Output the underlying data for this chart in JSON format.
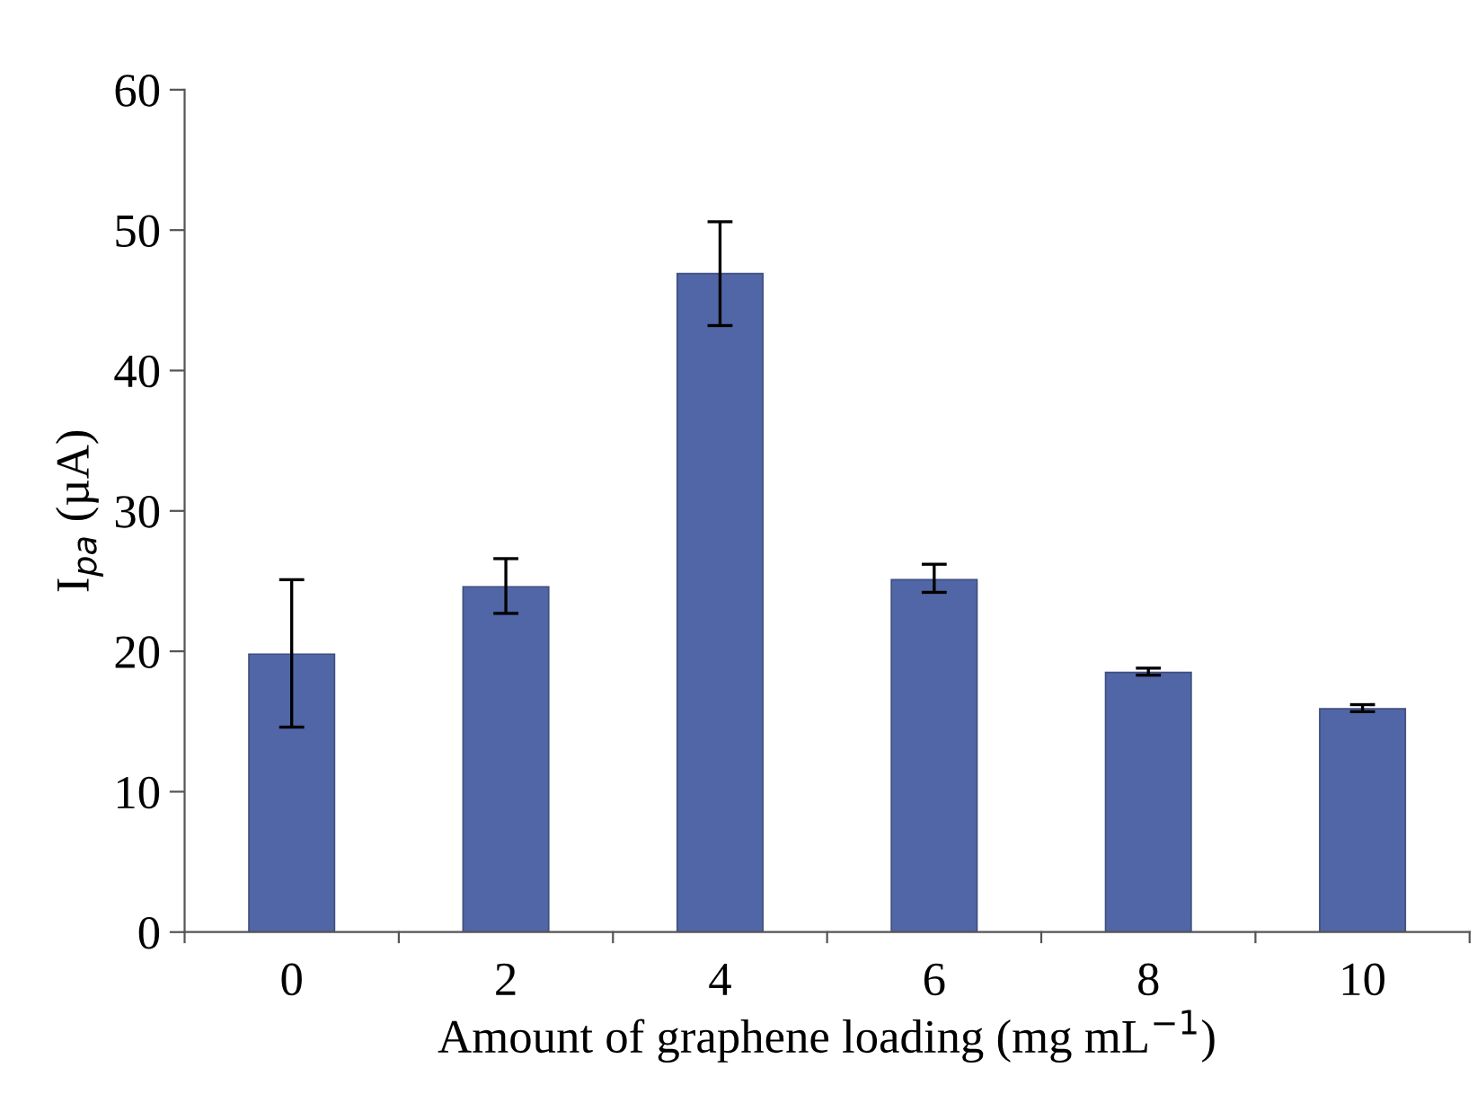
{
  "chart_data": {
    "type": "bar",
    "xlabel": "Amount of graphene loading (mg mL$^{−1}$)",
    "ylabel": "I$_{pa}$ (µA)",
    "categories": [
      "0",
      "2",
      "4",
      "6",
      "8",
      "10"
    ],
    "values": [
      19.8,
      24.6,
      46.9,
      25.1,
      18.5,
      15.9
    ],
    "errors": [
      [
        14.6,
        25.1
      ],
      [
        22.7,
        26.6
      ],
      [
        43.2,
        50.6
      ],
      [
        24.2,
        26.2
      ],
      [
        18.3,
        18.8
      ],
      [
        15.7,
        16.2
      ]
    ],
    "color": "#5166a6",
    "ylim": [
      0,
      60
    ],
    "yticks": [
      0,
      10,
      20,
      30,
      40,
      50,
      60
    ],
    "grid": false,
    "legend": false
  }
}
